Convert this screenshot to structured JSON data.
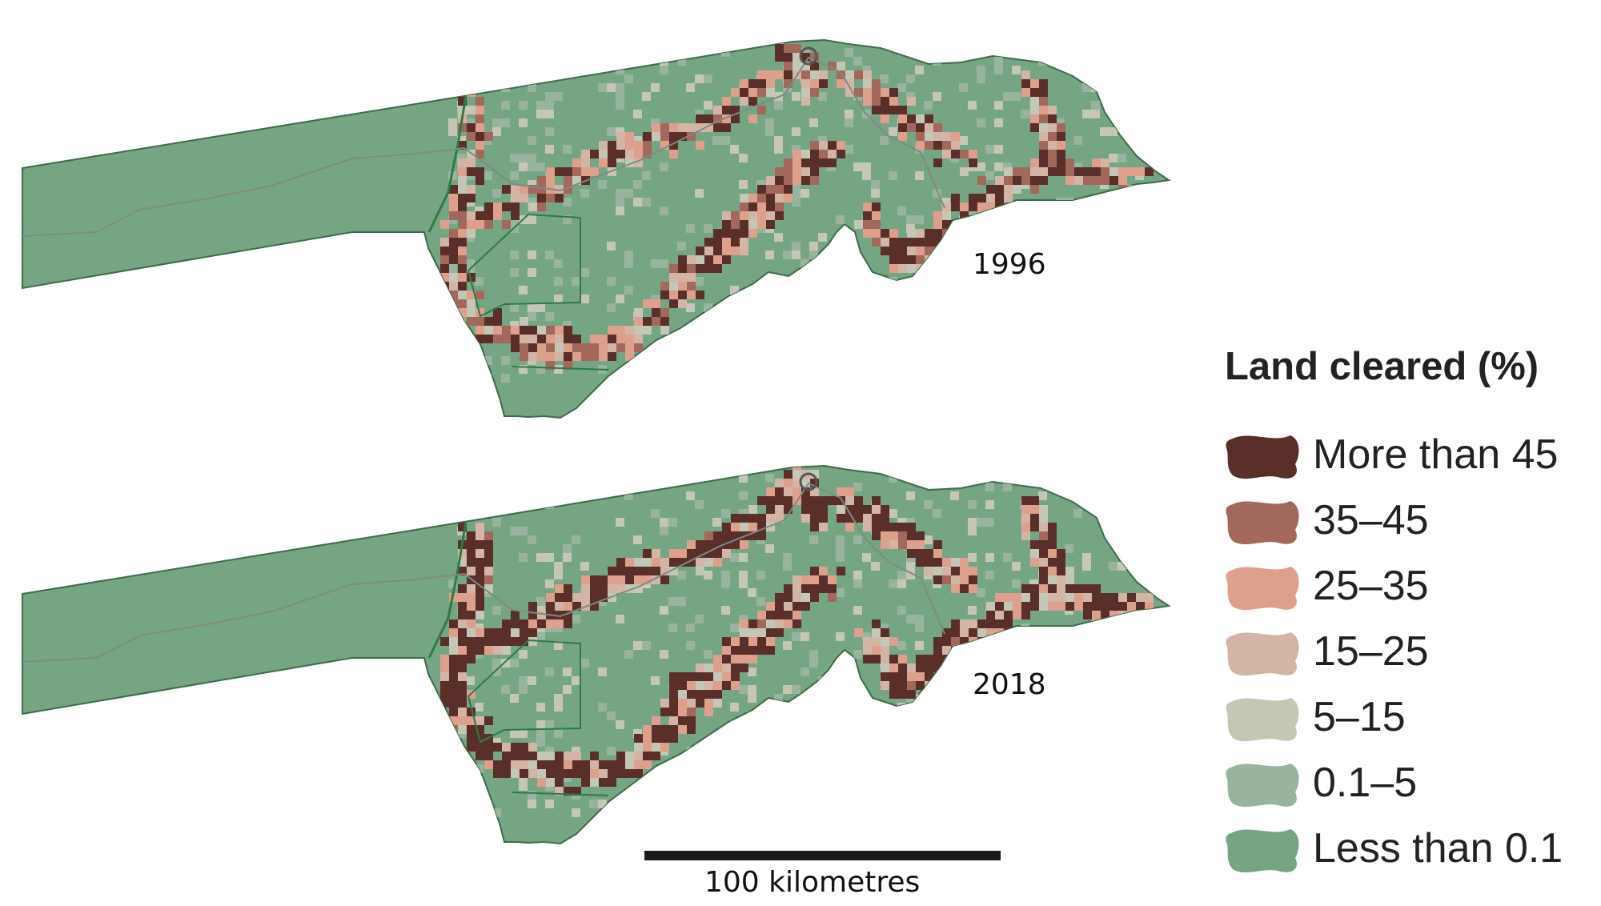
{
  "maps": [
    {
      "year": "1996",
      "name": "map-1996"
    },
    {
      "year": "2018",
      "name": "map-2018"
    }
  ],
  "scale_bar": {
    "label": "100 kilometres"
  },
  "legend": {
    "title": "Land cleared (%)",
    "items": [
      {
        "label": "More than 45",
        "color": "#5a2e29"
      },
      {
        "label": "35–45",
        "color": "#a2685c"
      },
      {
        "label": "25–35",
        "color": "#dca08c"
      },
      {
        "label": "15–25",
        "color": "#d3b5a6"
      },
      {
        "label": "5–15",
        "color": "#c4c7b6"
      },
      {
        "label": "0.1–5",
        "color": "#98b49e"
      },
      {
        "label": "Less than 0.1",
        "color": "#76a584"
      }
    ]
  },
  "colors": {
    "land_base": "#76a584",
    "outline": "#2f7a45",
    "road": "#7f8a82",
    "scale_bar": "#1a1a1a"
  }
}
